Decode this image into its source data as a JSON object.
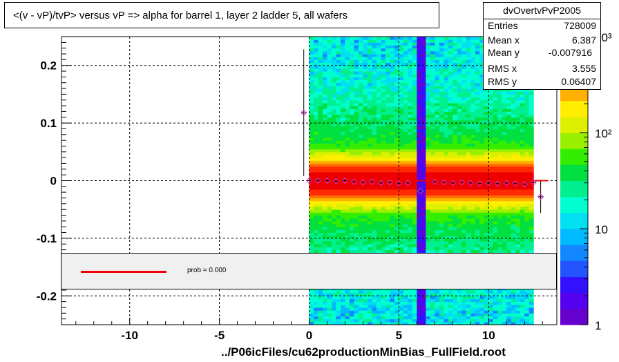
{
  "title": "<(v - vP)/tvP> versus   vP => alpha for barrel 1, layer 2 ladder 5, all wafers",
  "stats": {
    "name": "dvOvertvPvP2005",
    "rows": [
      {
        "label": "Entries",
        "value": "728009"
      },
      {
        "label": "Mean x",
        "value": "6.387"
      },
      {
        "label": "Mean y",
        "value": "-0.007916"
      },
      {
        "label": "RMS x",
        "value": "3.555"
      },
      {
        "label": "RMS y",
        "value": "0.06407"
      }
    ]
  },
  "fit_legend": {
    "text": "prob = 0.000",
    "line_color": "#ee0000"
  },
  "x_axis_title": "../P06icFiles/cu62productionMinBias_FullField.root",
  "chart_data": {
    "type": "heatmap",
    "title": "<(v - vP)/tvP> versus   vP => alpha for barrel 1, layer 2 ladder 5, all wafers",
    "xlim": [
      -13.8,
      13.8
    ],
    "ylim": [
      -0.25,
      0.25
    ],
    "x_ticks": [
      {
        "v": -10,
        "l": "-10"
      },
      {
        "v": -5,
        "l": "-5"
      },
      {
        "v": 0,
        "l": "0"
      },
      {
        "v": 5,
        "l": "5"
      },
      {
        "v": 10,
        "l": "10"
      }
    ],
    "y_ticks": [
      {
        "v": 0.2,
        "l": "0.2"
      },
      {
        "v": 0.1,
        "l": "0.1"
      },
      {
        "v": 0,
        "l": "0"
      },
      {
        "v": -0.1,
        "l": "-0.1"
      },
      {
        "v": -0.2,
        "l": "-0.2"
      }
    ],
    "grid": true,
    "log_z": true,
    "z_ticks": [
      {
        "v": 1,
        "l": "1"
      },
      {
        "v": 10,
        "l": "10"
      },
      {
        "v": 100,
        "l": "10²"
      },
      {
        "v": 1000,
        "l": "10³"
      }
    ],
    "zlim": [
      1,
      1000
    ],
    "occupied_x_range": [
      0,
      12.5
    ],
    "empty_column_x": [
      6.0,
      6.5
    ],
    "profile_points": [
      {
        "x": -0.3,
        "y": 0.118,
        "err": 0.11
      },
      {
        "x": 0.0,
        "y": 0.0
      },
      {
        "x": 0.5,
        "y": 0.0
      },
      {
        "x": 1.0,
        "y": 0.0
      },
      {
        "x": 1.5,
        "y": -0.001
      },
      {
        "x": 2.0,
        "y": 0.0
      },
      {
        "x": 2.5,
        "y": -0.002
      },
      {
        "x": 3.0,
        "y": -0.003
      },
      {
        "x": 3.5,
        "y": -0.002
      },
      {
        "x": 4.0,
        "y": -0.004
      },
      {
        "x": 4.5,
        "y": -0.003
      },
      {
        "x": 5.0,
        "y": -0.005
      },
      {
        "x": 5.5,
        "y": -0.004
      },
      {
        "x": 6.2,
        "y": -0.018
      },
      {
        "x": 7.0,
        "y": -0.002
      },
      {
        "x": 7.5,
        "y": -0.003
      },
      {
        "x": 8.0,
        "y": -0.004
      },
      {
        "x": 8.5,
        "y": -0.003
      },
      {
        "x": 9.0,
        "y": -0.004
      },
      {
        "x": 9.5,
        "y": -0.005
      },
      {
        "x": 10.0,
        "y": -0.004
      },
      {
        "x": 10.5,
        "y": -0.005
      },
      {
        "x": 11.0,
        "y": -0.004
      },
      {
        "x": 11.5,
        "y": -0.005
      },
      {
        "x": 12.0,
        "y": -0.006
      },
      {
        "x": 12.5,
        "y": -0.003
      },
      {
        "x": 12.9,
        "y": -0.028,
        "err": 0.028
      }
    ],
    "fit_line": {
      "x": [
        0,
        13.3
      ],
      "y": [
        0,
        0
      ]
    }
  }
}
